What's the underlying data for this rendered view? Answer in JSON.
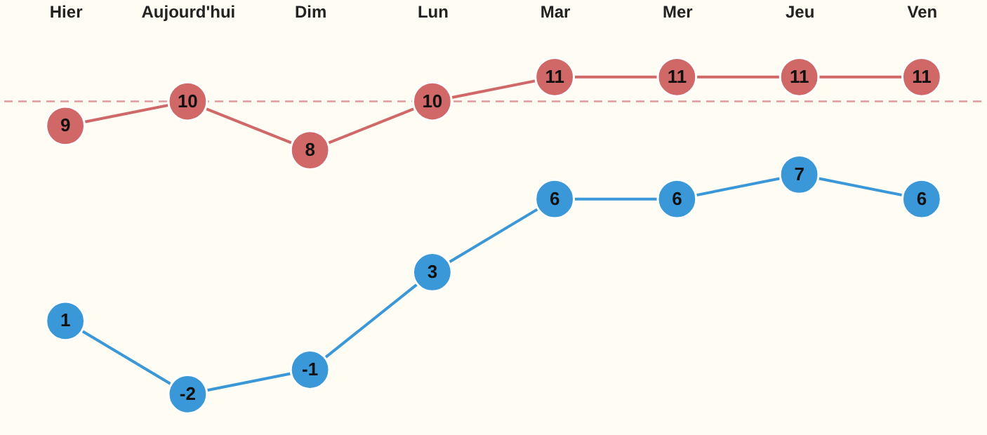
{
  "chart_data": {
    "type": "line",
    "categories": [
      "Hier",
      "Aujourd'hui",
      "Dim",
      "Lun",
      "Mar",
      "Mer",
      "Jeu",
      "Ven"
    ],
    "series": [
      {
        "color": "#d06868",
        "values": [
          9,
          10,
          8,
          10,
          11,
          11,
          11,
          11
        ]
      },
      {
        "color": "#3a98d8",
        "values": [
          1,
          -2,
          -1,
          3,
          6,
          6,
          7,
          6
        ]
      }
    ],
    "relative": false,
    "data_labels": true,
    "marker": "circle",
    "grid": false,
    "tick_labels": "x",
    "ref_lines": [
      {
        "axis": "y",
        "value": 10,
        "color": "#e09a9a",
        "line_style": "dashed"
      }
    ]
  }
}
